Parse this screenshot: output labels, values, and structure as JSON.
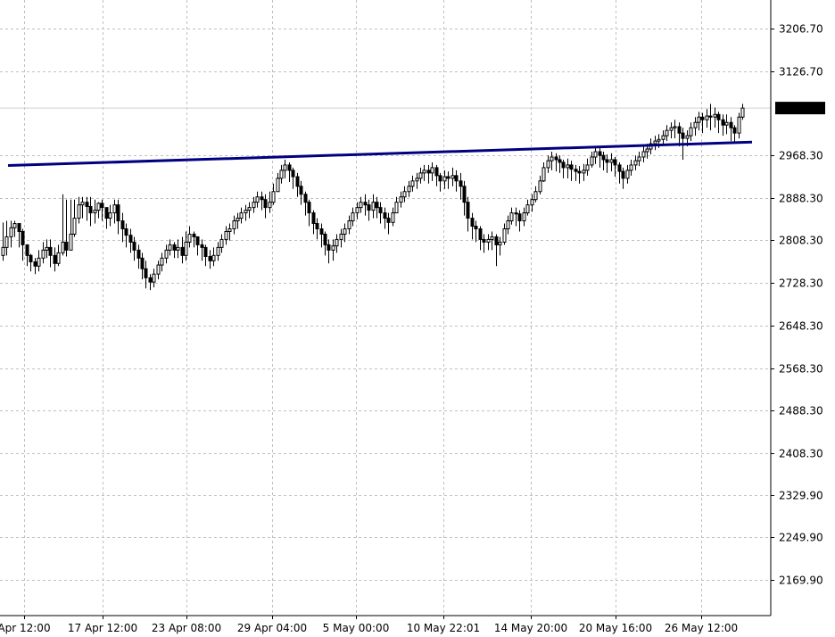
{
  "chart_data": {
    "type": "candlestick",
    "title": "",
    "xlabel": "",
    "ylabel": "",
    "grid": true,
    "ylim": [
      2130,
      3250
    ],
    "y_ticks": [
      "3206.70",
      "3126.70",
      "2968.30",
      "2888.30",
      "2808.30",
      "2728.30",
      "2648.30",
      "2568.30",
      "2488.30",
      "2408.30",
      "2329.90",
      "2249.90",
      "2169.90"
    ],
    "x_ticks": [
      "Apr 12:00",
      "17 Apr 12:00",
      "23 Apr 08:00",
      "29 Apr 04:00",
      "5 May 00:00",
      "10 May 22:01",
      "14 May 20:00",
      "20 May 16:00",
      "26 May 12:00"
    ],
    "current_price": "3057.00",
    "trendline": {
      "color": "#000080",
      "start": 2949,
      "end": 2993
    },
    "colors": {
      "grid": "#c0c0c0",
      "price_label_bg": "#000000",
      "price_label_text": "#ffffff",
      "candle": "#000000"
    },
    "close": [
      2795,
      2815,
      2832,
      2840,
      2825,
      2800,
      2780,
      2768,
      2760,
      2775,
      2790,
      2795,
      2780,
      2765,
      2785,
      2805,
      2790,
      2820,
      2850,
      2875,
      2880,
      2872,
      2860,
      2865,
      2878,
      2870,
      2850,
      2860,
      2875,
      2845,
      2830,
      2818,
      2805,
      2790,
      2775,
      2755,
      2738,
      2730,
      2745,
      2762,
      2775,
      2790,
      2800,
      2790,
      2795,
      2780,
      2805,
      2820,
      2815,
      2800,
      2795,
      2778,
      2770,
      2780,
      2795,
      2810,
      2825,
      2830,
      2845,
      2850,
      2860,
      2865,
      2870,
      2880,
      2890,
      2885,
      2870,
      2880,
      2900,
      2925,
      2940,
      2950,
      2940,
      2928,
      2910,
      2895,
      2880,
      2860,
      2840,
      2830,
      2820,
      2800,
      2790,
      2798,
      2810,
      2820,
      2830,
      2845,
      2860,
      2870,
      2880,
      2875,
      2865,
      2880,
      2870,
      2860,
      2850,
      2842,
      2860,
      2880,
      2890,
      2900,
      2910,
      2920,
      2925,
      2935,
      2940,
      2935,
      2945,
      2930,
      2920,
      2928,
      2925,
      2930,
      2920,
      2910,
      2880,
      2850,
      2835,
      2830,
      2810,
      2805,
      2810,
      2815,
      2800,
      2805,
      2830,
      2845,
      2860,
      2858,
      2845,
      2860,
      2875,
      2885,
      2900,
      2920,
      2945,
      2958,
      2965,
      2960,
      2955,
      2945,
      2950,
      2942,
      2938,
      2935,
      2940,
      2950,
      2965,
      2975,
      2968,
      2960,
      2955,
      2960,
      2950,
      2938,
      2925,
      2940,
      2950,
      2958,
      2965,
      2975,
      2980,
      2990,
      2995,
      2998,
      3005,
      3015,
      3020,
      3022,
      3010,
      3000,
      3005,
      3020,
      3030,
      3040,
      3035,
      3042,
      3040,
      3045,
      3035,
      3025,
      3030,
      3020,
      3010,
      3040,
      3057
    ],
    "high": [
      2842,
      2845,
      2845,
      2845,
      2836,
      2830,
      2795,
      2783,
      2775,
      2790,
      2805,
      2810,
      2810,
      2795,
      2800,
      2895,
      2885,
      2885,
      2885,
      2890,
      2890,
      2890,
      2890,
      2885,
      2880,
      2885,
      2870,
      2875,
      2885,
      2885,
      2860,
      2840,
      2830,
      2815,
      2800,
      2785,
      2770,
      2745,
      2755,
      2770,
      2785,
      2800,
      2810,
      2805,
      2810,
      2815,
      2825,
      2835,
      2825,
      2815,
      2810,
      2800,
      2790,
      2795,
      2805,
      2820,
      2835,
      2840,
      2855,
      2860,
      2870,
      2875,
      2880,
      2890,
      2900,
      2900,
      2895,
      2900,
      2915,
      2935,
      2950,
      2960,
      2955,
      2945,
      2935,
      2920,
      2900,
      2885,
      2865,
      2850,
      2840,
      2825,
      2810,
      2810,
      2820,
      2830,
      2840,
      2855,
      2870,
      2880,
      2890,
      2895,
      2885,
      2895,
      2890,
      2880,
      2870,
      2860,
      2870,
      2890,
      2900,
      2910,
      2920,
      2930,
      2935,
      2945,
      2950,
      2950,
      2955,
      2950,
      2935,
      2940,
      2938,
      2945,
      2940,
      2935,
      2920,
      2890,
      2860,
      2845,
      2835,
      2820,
      2820,
      2825,
      2820,
      2815,
      2840,
      2855,
      2870,
      2870,
      2865,
      2870,
      2885,
      2895,
      2910,
      2930,
      2955,
      2968,
      2975,
      2972,
      2968,
      2960,
      2962,
      2958,
      2950,
      2948,
      2952,
      2962,
      2975,
      2985,
      2982,
      2975,
      2970,
      2972,
      2965,
      2955,
      2945,
      2950,
      2960,
      2968,
      2975,
      2985,
      2990,
      3000,
      3005,
      3008,
      3015,
      3025,
      3030,
      3035,
      3030,
      3020,
      3015,
      3030,
      3040,
      3050,
      3048,
      3055,
      3065,
      3058,
      3050,
      3045,
      3045,
      3040,
      3025,
      3048,
      3065
    ],
    "low": [
      2770,
      2780,
      2795,
      2815,
      2795,
      2770,
      2760,
      2750,
      2745,
      2750,
      2765,
      2775,
      2758,
      2750,
      2760,
      2780,
      2778,
      2790,
      2815,
      2840,
      2850,
      2845,
      2835,
      2840,
      2850,
      2845,
      2830,
      2835,
      2840,
      2820,
      2805,
      2795,
      2785,
      2770,
      2755,
      2735,
      2718,
      2715,
      2720,
      2735,
      2750,
      2765,
      2780,
      2775,
      2775,
      2765,
      2770,
      2795,
      2795,
      2780,
      2770,
      2760,
      2755,
      2760,
      2770,
      2785,
      2800,
      2808,
      2820,
      2830,
      2840,
      2845,
      2850,
      2860,
      2870,
      2865,
      2850,
      2860,
      2875,
      2900,
      2915,
      2925,
      2918,
      2905,
      2890,
      2875,
      2855,
      2835,
      2820,
      2810,
      2795,
      2780,
      2765,
      2770,
      2785,
      2795,
      2805,
      2820,
      2835,
      2848,
      2860,
      2855,
      2845,
      2850,
      2850,
      2840,
      2830,
      2820,
      2835,
      2860,
      2870,
      2880,
      2890,
      2900,
      2905,
      2915,
      2920,
      2915,
      2920,
      2910,
      2900,
      2905,
      2905,
      2910,
      2900,
      2885,
      2855,
      2825,
      2810,
      2805,
      2790,
      2785,
      2790,
      2790,
      2760,
      2780,
      2800,
      2820,
      2838,
      2835,
      2825,
      2835,
      2855,
      2862,
      2880,
      2895,
      2918,
      2935,
      2940,
      2938,
      2935,
      2925,
      2925,
      2920,
      2920,
      2915,
      2920,
      2930,
      2945,
      2952,
      2945,
      2940,
      2935,
      2938,
      2928,
      2915,
      2905,
      2915,
      2930,
      2940,
      2948,
      2955,
      2962,
      2970,
      2978,
      2982,
      2990,
      2995,
      3000,
      3000,
      2985,
      2960,
      2985,
      2995,
      3005,
      3015,
      3010,
      3020,
      3015,
      3020,
      3010,
      3005,
      3008,
      2995,
      2990,
      3000,
      3035
    ]
  }
}
